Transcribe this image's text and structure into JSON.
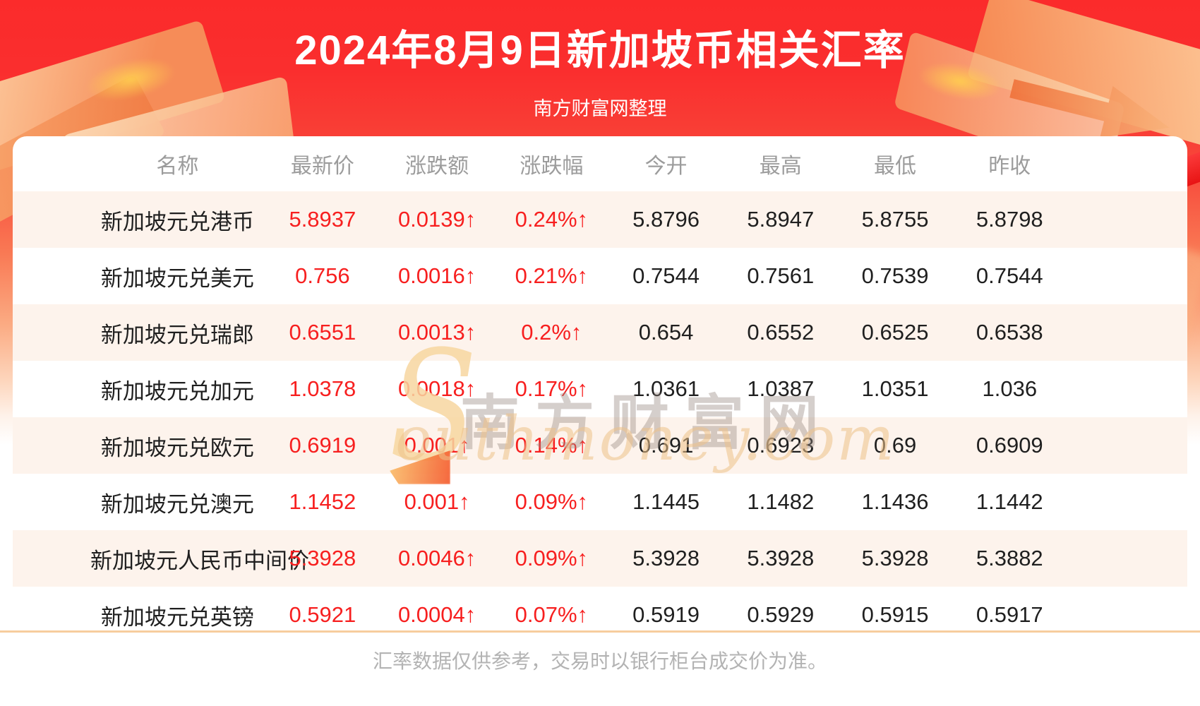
{
  "header": {
    "title": "2024年8月9日新加坡币相关汇率",
    "subtitle": "南方财富网整理"
  },
  "table": {
    "columns": [
      "名称",
      "最新价",
      "涨跌额",
      "涨跌幅",
      "今开",
      "最高",
      "最低",
      "昨收"
    ],
    "rows": [
      {
        "name": "新加坡元兑港币",
        "latest": "5.8937",
        "change": "0.0139↑",
        "pct": "0.24%↑",
        "open": "5.8796",
        "high": "5.8947",
        "low": "5.8755",
        "prev_close": "5.8798"
      },
      {
        "name": "新加坡元兑美元",
        "latest": "0.756",
        "change": "0.0016↑",
        "pct": "0.21%↑",
        "open": "0.7544",
        "high": "0.7561",
        "low": "0.7539",
        "prev_close": "0.7544"
      },
      {
        "name": "新加坡元兑瑞郎",
        "latest": "0.6551",
        "change": "0.0013↑",
        "pct": "0.2%↑",
        "open": "0.654",
        "high": "0.6552",
        "low": "0.6525",
        "prev_close": "0.6538"
      },
      {
        "name": "新加坡元兑加元",
        "latest": "1.0378",
        "change": "0.0018↑",
        "pct": "0.17%↑",
        "open": "1.0361",
        "high": "1.0387",
        "low": "1.0351",
        "prev_close": "1.036"
      },
      {
        "name": "新加坡元兑欧元",
        "latest": "0.6919",
        "change": "0.001↑",
        "pct": "0.14%↑",
        "open": "0.691",
        "high": "0.6923",
        "low": "0.69",
        "prev_close": "0.6909"
      },
      {
        "name": "新加坡元兑澳元",
        "latest": "1.1452",
        "change": "0.001↑",
        "pct": "0.09%↑",
        "open": "1.1445",
        "high": "1.1482",
        "low": "1.1436",
        "prev_close": "1.1442"
      },
      {
        "name": "新加坡元人民币中间价",
        "latest": "5.3928",
        "change": "0.0046↑",
        "pct": "0.09%↑",
        "open": "5.3928",
        "high": "5.3928",
        "low": "5.3928",
        "prev_close": "5.3882"
      },
      {
        "name": "新加坡元兑英镑",
        "latest": "0.5921",
        "change": "0.0004↑",
        "pct": "0.07%↑",
        "open": "0.5919",
        "high": "0.5929",
        "low": "0.5915",
        "prev_close": "0.5917"
      }
    ]
  },
  "watermark": {
    "swoosh": "S",
    "cn": "南方财富网",
    "en": "outhmoney.com"
  },
  "footer": {
    "note": "汇率数据仅供参考，交易时以银行柜台成交价为准。"
  },
  "colors": {
    "header_red_top": "#fb2b2b",
    "value_red": "#f71f1f",
    "row_stripe": "#fdf3ec",
    "divider_orange": "#f7cd9e",
    "column_header_gray": "#9c9c9c",
    "footer_gray": "#b3b3b3",
    "deco_gold": "#f8ab72"
  }
}
